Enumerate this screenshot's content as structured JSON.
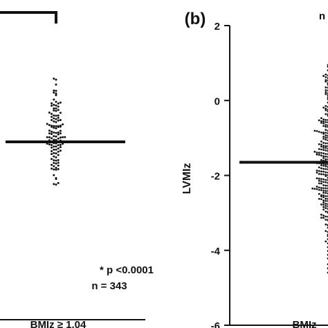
{
  "panel_b_label": "(b)",
  "partial_top_right_text": "n",
  "stats": {
    "p_text": "* p <0.0001",
    "n_text": "n = 343"
  },
  "chart_data": [
    {
      "type": "scatter",
      "panel": "a (partially visible)",
      "xlabel": "",
      "ylabel": "",
      "tick_labels_x": [
        "BMIz ≥ 1.04"
      ],
      "group_center_y_estimate": 0.0,
      "points_estimate": {
        "min": -1.3,
        "max": 2.3,
        "count": 120
      }
    },
    {
      "type": "scatter",
      "panel": "b",
      "ylabel": "LVMIz",
      "ylim": [
        -6,
        2
      ],
      "yticks": [
        2,
        0,
        -2,
        -4,
        -6
      ],
      "tick_labels_x": [
        "BMIz"
      ],
      "mean_line_y": -1.65,
      "points_estimate": {
        "min": -5.1,
        "max": 0.95,
        "count": 343
      }
    }
  ]
}
